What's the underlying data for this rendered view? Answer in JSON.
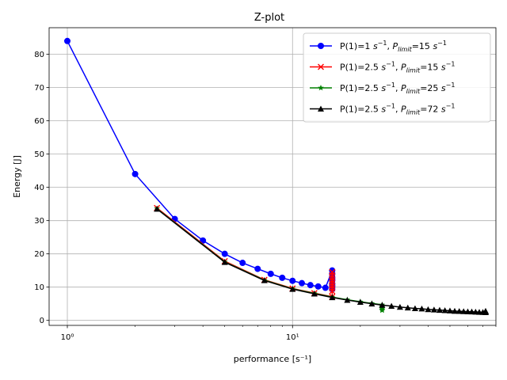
{
  "chart_data": {
    "type": "line",
    "title": "Z-plot",
    "xlabel": "performance [s⁻¹]",
    "ylabel": "Energy [J]",
    "xscale": "log",
    "xlim": [
      0.83,
      80
    ],
    "ylim": [
      -1.5,
      88
    ],
    "yticks": [
      0,
      10,
      20,
      30,
      40,
      50,
      60,
      70,
      80
    ],
    "ytick_labels": [
      "0",
      "10",
      "20",
      "30",
      "40",
      "50",
      "60",
      "70",
      "80"
    ],
    "xticks": [
      1,
      10
    ],
    "xtick_labels": [
      "10⁰",
      "10¹"
    ],
    "grid": true,
    "legend_position": "top-right",
    "series": [
      {
        "name": "P(1)=1 s⁻¹, Pₗᵢₘᵢₜ=15 s⁻¹",
        "name_parts": {
          "base": "P(1)=1 ",
          "unit": "s",
          "exp": "−1",
          "sep": ", ",
          "p": "P",
          "sub": "limit",
          "eq": "=15 "
        },
        "color": "#0000ff",
        "marker": "circle",
        "x": [
          1,
          2,
          3,
          4,
          5,
          6,
          7,
          8,
          9,
          10,
          11,
          12,
          13,
          14,
          15,
          15,
          15,
          15,
          15,
          15,
          15,
          15,
          15
        ],
        "y": [
          84,
          44,
          30.5,
          24,
          20,
          17.3,
          15.5,
          14,
          12.8,
          11.9,
          11.2,
          10.6,
          10.2,
          9.8,
          15,
          14,
          13,
          12.5,
          12,
          11,
          10.5,
          10,
          9.4
        ]
      },
      {
        "name": "P(1)=2.5 s⁻¹, Pₗᵢₘᵢₜ=15 s⁻¹",
        "name_parts": {
          "base": "P(1)=2.5 ",
          "unit": "s",
          "exp": "−1",
          "sep": ", ",
          "p": "P",
          "sub": "limit",
          "eq": "=15 "
        },
        "color": "#ff0000",
        "marker": "x",
        "x": [
          2.5,
          5,
          7.5,
          10,
          12.5,
          15,
          15,
          15,
          15,
          15,
          15,
          15,
          15,
          15
        ],
        "y": [
          33.8,
          17.8,
          12.2,
          9.6,
          8.2,
          7.1,
          14.5,
          13.6,
          12.8,
          12,
          11.2,
          10.4,
          9.6,
          8.8
        ]
      },
      {
        "name": "P(1)=2.5 s⁻¹, Pₗᵢₘᵢₜ=25 s⁻¹",
        "name_parts": {
          "base": "P(1)=2.5 ",
          "unit": "s",
          "exp": "−1",
          "sep": ", ",
          "p": "P",
          "sub": "limit",
          "eq": "=25 "
        },
        "color": "#008000",
        "marker": "star",
        "x": [
          2.5,
          5,
          7.5,
          10,
          12.5,
          15,
          17.5,
          20,
          22.5,
          25,
          25,
          25,
          25,
          25,
          25
        ],
        "y": [
          33.6,
          17.6,
          12.1,
          9.5,
          8.1,
          7.0,
          6.2,
          5.6,
          5.1,
          4.7,
          4.2,
          3.8,
          3.5,
          3.2,
          3.0
        ]
      },
      {
        "name": "P(1)=2.5 s⁻¹, Pₗᵢₘᵢₜ=72 s⁻¹",
        "name_parts": {
          "base": "P(1)=2.5 ",
          "unit": "s",
          "exp": "−1",
          "sep": ", ",
          "p": "P",
          "sub": "limit",
          "eq": "=72 "
        },
        "color": "#000000",
        "marker": "triangle",
        "x": [
          2.5,
          5,
          7.5,
          10,
          12.5,
          15,
          17.5,
          20,
          22.5,
          25,
          27.5,
          30,
          32.5,
          35,
          37.5,
          40,
          42.5,
          45,
          47.5,
          50,
          52.5,
          55,
          57.5,
          60,
          62.5,
          65,
          67.5,
          70,
          72,
          72,
          72
        ],
        "y": [
          33.5,
          17.5,
          12.0,
          9.4,
          8.0,
          6.9,
          6.1,
          5.5,
          5.0,
          4.6,
          4.3,
          4.0,
          3.8,
          3.6,
          3.5,
          3.3,
          3.2,
          3.1,
          3.0,
          2.9,
          2.8,
          2.75,
          2.7,
          2.65,
          2.6,
          2.55,
          2.5,
          2.45,
          2.4,
          2.6,
          2.8
        ]
      }
    ]
  }
}
